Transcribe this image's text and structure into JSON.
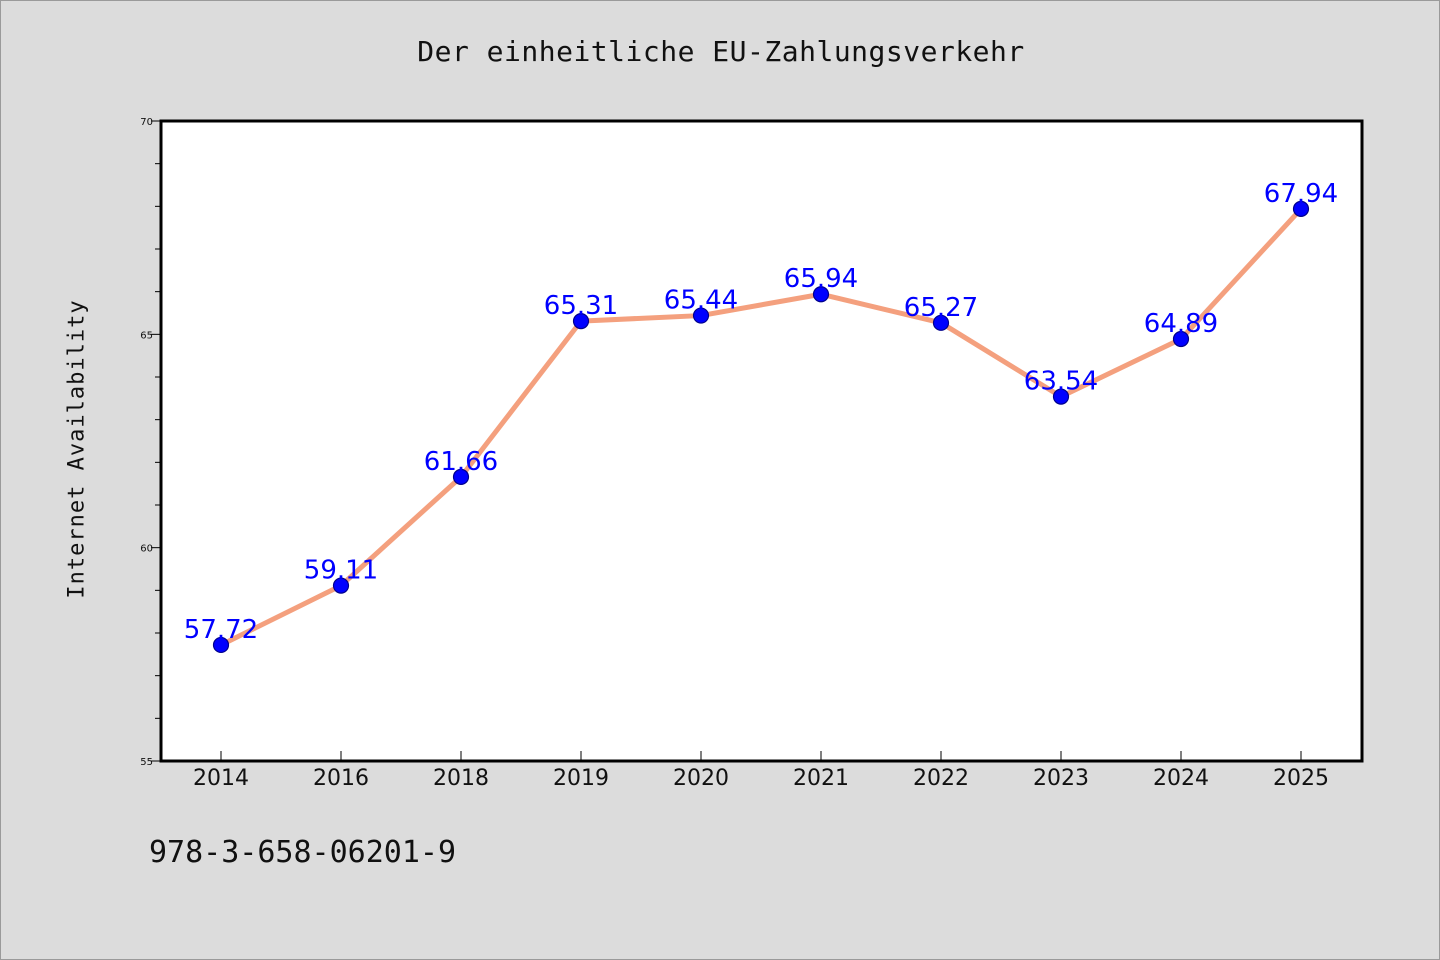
{
  "chart_data": {
    "type": "line",
    "title": "Der einheitliche EU-Zahlungsverkehr",
    "xlabel": "",
    "ylabel": "Internet Availability",
    "categories": [
      "2014",
      "2016",
      "2018",
      "2019",
      "2020",
      "2021",
      "2022",
      "2023",
      "2024",
      "2025"
    ],
    "series": [
      {
        "values": [
          57.72,
          59.11,
          61.66,
          65.31,
          65.44,
          65.94,
          65.27,
          63.54,
          64.89,
          67.94
        ]
      }
    ],
    "data_labels": [
      "57.72",
      "59.11",
      "61.66",
      "65.31",
      "65.44",
      "65.94",
      "65.27",
      "63.54",
      "64.89",
      "67.94"
    ],
    "ylim": [
      55,
      70
    ],
    "yticks": [
      "55",
      "60",
      "65",
      "70"
    ],
    "grid": false,
    "legend": "none",
    "colors": {
      "line": "#f4a07e",
      "marker": "#0000ff",
      "label": "#0000ff",
      "background": "#dcdcdc",
      "plot_area": "#ffffff"
    }
  },
  "footer": {
    "isbn": "978-3-658-06201-9"
  }
}
